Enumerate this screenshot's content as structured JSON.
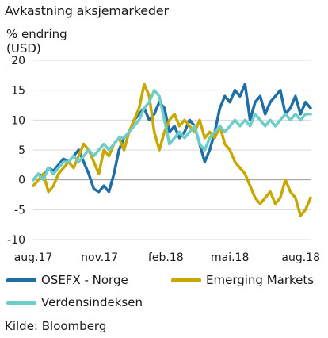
{
  "title": "Avkastning aksjemarkeder",
  "source": "Kilde: Bloomberg",
  "colors": {
    "osefx": "#1f6fa6",
    "em": "#c8a800",
    "world": "#6ecdc8",
    "grid": "#d8d8d8"
  },
  "chart_data": {
    "type": "line",
    "title": "Avkastning aksjemarkeder",
    "ylabel_lines": [
      "% endring",
      "(USD)"
    ],
    "xlabel": "",
    "ylim": [
      -10,
      20
    ],
    "yticks": [
      -10,
      -5,
      0,
      5,
      10,
      15,
      20
    ],
    "xlim": [
      "2017-08-01",
      "2018-08-21"
    ],
    "xticks": [
      {
        "date": "2017-08-01",
        "label": "aug.17"
      },
      {
        "date": "2017-11-01",
        "label": "nov.17"
      },
      {
        "date": "2018-02-01",
        "label": "feb.18"
      },
      {
        "date": "2018-05-01",
        "label": "mai.18"
      },
      {
        "date": "2018-08-01",
        "label": "aug.18"
      }
    ],
    "grid": "horizontal",
    "legend_position": "bottom",
    "series": [
      {
        "name": "OSEFX - Norge",
        "color": "#1f6fa6",
        "points": [
          [
            "2017-08-01",
            0
          ],
          [
            "2017-08-08",
            1
          ],
          [
            "2017-08-15",
            0.5
          ],
          [
            "2017-08-22",
            2
          ],
          [
            "2017-08-29",
            1.5
          ],
          [
            "2017-09-05",
            2.5
          ],
          [
            "2017-09-12",
            3.5
          ],
          [
            "2017-09-19",
            3
          ],
          [
            "2017-09-26",
            4
          ],
          [
            "2017-10-03",
            5
          ],
          [
            "2017-10-10",
            3
          ],
          [
            "2017-10-17",
            1
          ],
          [
            "2017-10-24",
            -1.5
          ],
          [
            "2017-10-31",
            -2
          ],
          [
            "2017-11-07",
            -1
          ],
          [
            "2017-11-14",
            -2
          ],
          [
            "2017-11-21",
            1
          ],
          [
            "2017-11-28",
            5
          ],
          [
            "2017-12-05",
            7
          ],
          [
            "2017-12-12",
            8
          ],
          [
            "2017-12-19",
            10
          ],
          [
            "2017-12-26",
            11
          ],
          [
            "2018-01-02",
            12
          ],
          [
            "2018-01-09",
            10
          ],
          [
            "2018-01-16",
            11
          ],
          [
            "2018-01-23",
            13
          ],
          [
            "2018-01-30",
            12
          ],
          [
            "2018-02-06",
            8
          ],
          [
            "2018-02-13",
            9
          ],
          [
            "2018-02-20",
            7
          ],
          [
            "2018-02-27",
            8
          ],
          [
            "2018-03-06",
            10
          ],
          [
            "2018-03-13",
            9
          ],
          [
            "2018-03-20",
            6
          ],
          [
            "2018-03-27",
            3
          ],
          [
            "2018-04-03",
            5
          ],
          [
            "2018-04-10",
            8
          ],
          [
            "2018-04-17",
            12
          ],
          [
            "2018-04-24",
            14
          ],
          [
            "2018-05-01",
            13
          ],
          [
            "2018-05-08",
            15
          ],
          [
            "2018-05-15",
            14
          ],
          [
            "2018-05-22",
            16
          ],
          [
            "2018-05-29",
            10
          ],
          [
            "2018-06-05",
            13
          ],
          [
            "2018-06-12",
            14
          ],
          [
            "2018-06-19",
            11
          ],
          [
            "2018-06-26",
            13
          ],
          [
            "2018-07-03",
            14
          ],
          [
            "2018-07-10",
            15
          ],
          [
            "2018-07-17",
            11
          ],
          [
            "2018-07-24",
            12
          ],
          [
            "2018-07-31",
            14
          ],
          [
            "2018-08-07",
            11
          ],
          [
            "2018-08-14",
            13
          ],
          [
            "2018-08-21",
            12
          ]
        ]
      },
      {
        "name": "Emerging Markets",
        "color": "#c8a800",
        "points": [
          [
            "2017-08-01",
            -1
          ],
          [
            "2017-08-08",
            0
          ],
          [
            "2017-08-15",
            1
          ],
          [
            "2017-08-22",
            -2
          ],
          [
            "2017-08-29",
            -1
          ],
          [
            "2017-09-05",
            1
          ],
          [
            "2017-09-12",
            2
          ],
          [
            "2017-09-19",
            3
          ],
          [
            "2017-09-26",
            2
          ],
          [
            "2017-10-03",
            4
          ],
          [
            "2017-10-10",
            6
          ],
          [
            "2017-10-17",
            5
          ],
          [
            "2017-10-24",
            3
          ],
          [
            "2017-10-31",
            1
          ],
          [
            "2017-11-07",
            5
          ],
          [
            "2017-11-14",
            4
          ],
          [
            "2017-11-21",
            6
          ],
          [
            "2017-11-28",
            7
          ],
          [
            "2017-12-05",
            5
          ],
          [
            "2017-12-12",
            8
          ],
          [
            "2017-12-19",
            10
          ],
          [
            "2017-12-26",
            12
          ],
          [
            "2018-01-02",
            16
          ],
          [
            "2018-01-09",
            14
          ],
          [
            "2018-01-16",
            8
          ],
          [
            "2018-01-23",
            5
          ],
          [
            "2018-01-30",
            8
          ],
          [
            "2018-02-06",
            10
          ],
          [
            "2018-02-13",
            11
          ],
          [
            "2018-02-20",
            9
          ],
          [
            "2018-02-27",
            10
          ],
          [
            "2018-03-06",
            9
          ],
          [
            "2018-03-13",
            8
          ],
          [
            "2018-03-20",
            10
          ],
          [
            "2018-03-27",
            7
          ],
          [
            "2018-04-03",
            8
          ],
          [
            "2018-04-10",
            7
          ],
          [
            "2018-04-17",
            9
          ],
          [
            "2018-04-24",
            6
          ],
          [
            "2018-05-01",
            5
          ],
          [
            "2018-05-08",
            3
          ],
          [
            "2018-05-15",
            2
          ],
          [
            "2018-05-22",
            1
          ],
          [
            "2018-05-29",
            -1
          ],
          [
            "2018-06-05",
            -3
          ],
          [
            "2018-06-12",
            -4
          ],
          [
            "2018-06-19",
            -3
          ],
          [
            "2018-06-26",
            -2
          ],
          [
            "2018-07-03",
            -4
          ],
          [
            "2018-07-10",
            -3
          ],
          [
            "2018-07-17",
            0
          ],
          [
            "2018-07-24",
            -2
          ],
          [
            "2018-07-31",
            -3
          ],
          [
            "2018-08-07",
            -6
          ],
          [
            "2018-08-14",
            -5
          ],
          [
            "2018-08-21",
            -3
          ]
        ]
      },
      {
        "name": "Verdensindeksen",
        "color": "#6ecdc8",
        "points": [
          [
            "2017-08-01",
            0
          ],
          [
            "2017-08-08",
            1
          ],
          [
            "2017-08-15",
            0
          ],
          [
            "2017-08-22",
            2
          ],
          [
            "2017-08-29",
            1
          ],
          [
            "2017-09-05",
            2
          ],
          [
            "2017-09-12",
            3
          ],
          [
            "2017-09-19",
            3
          ],
          [
            "2017-09-26",
            4
          ],
          [
            "2017-10-03",
            3
          ],
          [
            "2017-10-10",
            4
          ],
          [
            "2017-10-17",
            5
          ],
          [
            "2017-10-24",
            4
          ],
          [
            "2017-10-31",
            5
          ],
          [
            "2017-11-07",
            6
          ],
          [
            "2017-11-14",
            5
          ],
          [
            "2017-11-21",
            6
          ],
          [
            "2017-11-28",
            7
          ],
          [
            "2017-12-05",
            7
          ],
          [
            "2017-12-12",
            8
          ],
          [
            "2017-12-19",
            9
          ],
          [
            "2017-12-26",
            10
          ],
          [
            "2018-01-02",
            12
          ],
          [
            "2018-01-09",
            13
          ],
          [
            "2018-01-16",
            15
          ],
          [
            "2018-01-23",
            14
          ],
          [
            "2018-01-30",
            10
          ],
          [
            "2018-02-06",
            6
          ],
          [
            "2018-02-13",
            7
          ],
          [
            "2018-02-20",
            8
          ],
          [
            "2018-02-27",
            7
          ],
          [
            "2018-03-06",
            8
          ],
          [
            "2018-03-13",
            9
          ],
          [
            "2018-03-20",
            6
          ],
          [
            "2018-03-27",
            5
          ],
          [
            "2018-04-03",
            7
          ],
          [
            "2018-04-10",
            8
          ],
          [
            "2018-04-17",
            9
          ],
          [
            "2018-04-24",
            8
          ],
          [
            "2018-05-01",
            9
          ],
          [
            "2018-05-08",
            10
          ],
          [
            "2018-05-15",
            9
          ],
          [
            "2018-05-22",
            10
          ],
          [
            "2018-05-29",
            9
          ],
          [
            "2018-06-05",
            11
          ],
          [
            "2018-06-12",
            10
          ],
          [
            "2018-06-19",
            9
          ],
          [
            "2018-06-26",
            10
          ],
          [
            "2018-07-03",
            9
          ],
          [
            "2018-07-10",
            10
          ],
          [
            "2018-07-17",
            11
          ],
          [
            "2018-07-24",
            10
          ],
          [
            "2018-07-31",
            11
          ],
          [
            "2018-08-07",
            10
          ],
          [
            "2018-08-14",
            11
          ],
          [
            "2018-08-21",
            11
          ]
        ]
      }
    ]
  }
}
